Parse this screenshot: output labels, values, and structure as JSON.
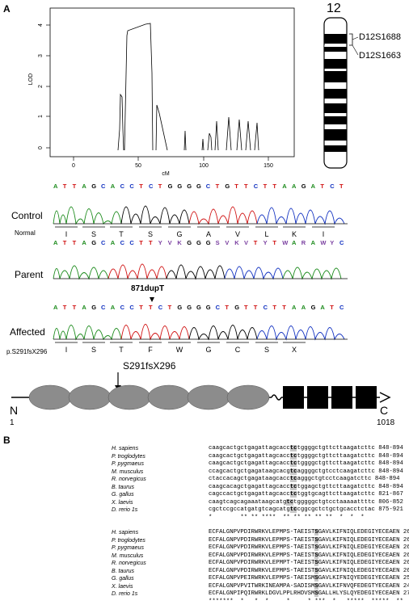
{
  "panel_a_label": "A",
  "panel_b_label": "B",
  "lod_plot": {
    "ylabel": "LOD",
    "xlabel": "cM",
    "xticks": [
      "0",
      "50",
      "100",
      "150"
    ],
    "yticks": [
      "0",
      "1",
      "2",
      "3",
      "4"
    ]
  },
  "chromosome": {
    "number": "12",
    "marker1": "D12S1688",
    "marker2": "D12S1663"
  },
  "chromatograms": {
    "control_label": "Control",
    "normal_label": "Normal",
    "parent_label": "Parent",
    "affected_label": "Affected",
    "mutation_label": "871dupT",
    "protein_label": "p.S291fsX296",
    "control_seq": "ATTAGCACCTCTGGGGCTGTTCTTAAGATCT",
    "parent_seq": "ATTAGCACCTTYVKGGGSVKVTYTWARAWYC",
    "affected_seq": "ATTAGCACCTTCTGGGGCTGTTCTTAAGATC",
    "control_aa": [
      "I",
      "S",
      "T",
      "S",
      "G",
      "A",
      "V",
      "L",
      "K",
      "I"
    ],
    "affected_aa": [
      "I",
      "S",
      "T",
      "F",
      "W",
      "G",
      "C",
      "S",
      "X"
    ]
  },
  "protein_schematic": {
    "mutation": "S291fsX296",
    "n_term": "N",
    "c_term": "C",
    "start": "1",
    "end": "1018"
  },
  "alignment_nt": {
    "rows": [
      {
        "species": "H. sapiens",
        "pre": "caagcactgctgagattagcacc",
        "hl": "tc",
        "post": "tggggctgttcttaagatcttc",
        "range": "848-894"
      },
      {
        "species": "P. troglodytes",
        "pre": "caagcactgctgagattagcacc",
        "hl": "tc",
        "post": "tggggctgttcttaagatcttc",
        "range": "848-894"
      },
      {
        "species": "P. pygmaeus",
        "pre": "caagcactgctgagattagcacc",
        "hl": "tc",
        "post": "tggggctgttcttaagatcttc",
        "range": "848-894"
      },
      {
        "species": "M. musculus",
        "pre": "ccagcactgctgagataagcacg",
        "hl": "tc",
        "post": "aggggctgtcctcaagatcttc",
        "range": "848-894"
      },
      {
        "species": "R. norvegicus",
        "pre": "ctaccacagctgagataagcacc",
        "hl": "tc",
        "post": "agggctgtcctcaagatcttc",
        "range": "848-894"
      },
      {
        "species": "B. taurus",
        "pre": "caagcacagctgagattagcacc",
        "hl": "tc",
        "post": "tggagctgttcttaagatcttc",
        "range": "848-894"
      },
      {
        "species": "G. gallus",
        "pre": "cagccactgctgagattagcacc",
        "hl": "tc",
        "post": "tggtgcagttcttaagatcttc",
        "range": "821-867"
      },
      {
        "species": "X. laevis",
        "pre": "caagtcagcagaaataagcatg",
        "hl": "tc",
        "post": "tgggggctgtcctaaaaattttc",
        "range": "806-852"
      },
      {
        "species": "D. rerio 1s",
        "pre": "cgctccgccatgatgtcagcatg",
        "hl": "tc",
        "post": "cggcgctctgctgcacctctac",
        "range": "875-921"
      }
    ],
    "conservation": "*        ** ** ****  ** ** ** ** **  *  *  *"
  },
  "alignment_aa": {
    "rows": [
      {
        "species": "H. sapiens",
        "pre": "ECFALGNPVPDIRWRKVLEPMPS-TAEIST",
        "hl": "S",
        "post": "GAVLKIFNIQLEDEGIYECEAEN",
        "range": "262-314"
      },
      {
        "species": "P. troglodytes",
        "pre": "ECFALGNPVPDIRWRKVLEPMPS-TAEIST",
        "hl": "S",
        "post": "GAVLKIFNIQLEDEGIYECEAEN",
        "range": "262-314"
      },
      {
        "species": "P. pygmaeus",
        "pre": "ECFALGNPVPDIRWRKVLEPMPS-TAEIST",
        "hl": "S",
        "post": "GAVLKIFNIQLEDEGIYECEAEN",
        "range": "262-314"
      },
      {
        "species": "M. musculus",
        "pre": "ECFALGNPVPDIRWRKVLEPMPS-TAEIST",
        "hl": "S",
        "post": "GAVLKIFNIQLEDEGIYECEAEN",
        "range": "262-314"
      },
      {
        "species": "R. norvegicus",
        "pre": "ECFALGNPVPDIRWRKVLEPMPT-TAEIST",
        "hl": "S",
        "post": "GAVLKIFNIQLEDEGIYECEAEN",
        "range": "262-314"
      },
      {
        "species": "B. taurus",
        "pre": "ECFALGNPVPDIRWRKVLEPMPS-TAEIST",
        "hl": "S",
        "post": "GAVLKIFNIQLEDEGIYECEAEN",
        "range": "262-314"
      },
      {
        "species": "G. gallus",
        "pre": "ECFALGNPVPEIRWRKVLEPMPS-TAEISM",
        "hl": "S",
        "post": "GAVLKIFNIQYEDEGIYECEAEN",
        "range": "253-305"
      },
      {
        "species": "X. laevis",
        "pre": "ECFALGNPVPVITWRKINEAMPA-SADISM",
        "hl": "S",
        "post": "GAVLKIFNVQFEDEGTYECEAEN",
        "range": "248-300"
      },
      {
        "species": "D. rerio 1s",
        "pre": "ECFALGNPIPQIRWRKLDGVLPPLRHDVSM",
        "hl": "S",
        "post": "GALLHLYSLQYEDEGIYECEAEN",
        "range": "270-323"
      }
    ],
    "conservation": "*******  *   *  *     *     * ***  *   *****  *****  **"
  }
}
